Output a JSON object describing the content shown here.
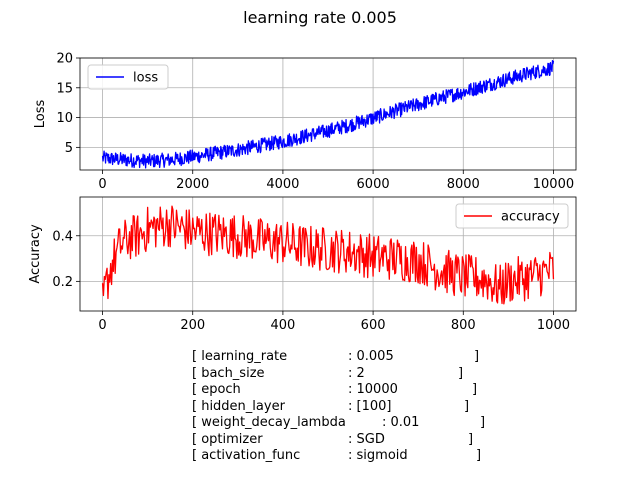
{
  "figure": {
    "suptitle": "learning rate 0.005"
  },
  "chart_data": [
    {
      "type": "line",
      "ylabel": "Loss",
      "xlabel": "",
      "x_range": [
        0,
        10000
      ],
      "xlim": [
        -500,
        10500
      ],
      "ylim": [
        1.2,
        20
      ],
      "xticks": [
        0,
        2000,
        4000,
        6000,
        8000,
        10000
      ],
      "yticks": [
        5,
        10,
        15,
        20
      ],
      "grid": true,
      "legend_placement": "upper left",
      "series": [
        {
          "name": "loss",
          "color": "#0000ff",
          "points": [
            {
              "x": 0,
              "y": 3.2
            },
            {
              "x": 500,
              "y": 2.9
            },
            {
              "x": 1000,
              "y": 2.7
            },
            {
              "x": 1500,
              "y": 2.9
            },
            {
              "x": 2000,
              "y": 3.4
            },
            {
              "x": 2500,
              "y": 4.0
            },
            {
              "x": 3000,
              "y": 4.6
            },
            {
              "x": 3500,
              "y": 5.3
            },
            {
              "x": 4000,
              "y": 6.0
            },
            {
              "x": 4500,
              "y": 6.9
            },
            {
              "x": 5000,
              "y": 7.8
            },
            {
              "x": 5500,
              "y": 8.8
            },
            {
              "x": 6000,
              "y": 9.9
            },
            {
              "x": 6500,
              "y": 11.1
            },
            {
              "x": 7000,
              "y": 12.2
            },
            {
              "x": 7500,
              "y": 13.3
            },
            {
              "x": 8000,
              "y": 14.3
            },
            {
              "x": 8500,
              "y": 15.4
            },
            {
              "x": 9000,
              "y": 16.5
            },
            {
              "x": 9500,
              "y": 17.5
            },
            {
              "x": 10000,
              "y": 18.4
            }
          ],
          "noise_band": 1.2
        }
      ]
    },
    {
      "type": "line",
      "ylabel": "Accuracy",
      "xlabel": "",
      "x_range": [
        0,
        1000
      ],
      "xlim": [
        -50,
        1050
      ],
      "ylim": [
        0.07,
        0.57
      ],
      "xticks": [
        0,
        200,
        400,
        600,
        800,
        1000
      ],
      "yticks": [
        0.2,
        0.4
      ],
      "grid": true,
      "legend_placement": "upper right",
      "series": [
        {
          "name": "accuracy",
          "color": "#ff0000",
          "points": [
            {
              "x": 0,
              "y": 0.1
            },
            {
              "x": 10,
              "y": 0.2
            },
            {
              "x": 20,
              "y": 0.27
            },
            {
              "x": 40,
              "y": 0.36
            },
            {
              "x": 60,
              "y": 0.39
            },
            {
              "x": 80,
              "y": 0.4
            },
            {
              "x": 100,
              "y": 0.43
            },
            {
              "x": 120,
              "y": 0.44
            },
            {
              "x": 150,
              "y": 0.45
            },
            {
              "x": 180,
              "y": 0.43
            },
            {
              "x": 200,
              "y": 0.42
            },
            {
              "x": 250,
              "y": 0.41
            },
            {
              "x": 300,
              "y": 0.4
            },
            {
              "x": 350,
              "y": 0.38
            },
            {
              "x": 400,
              "y": 0.37
            },
            {
              "x": 450,
              "y": 0.35
            },
            {
              "x": 500,
              "y": 0.34
            },
            {
              "x": 550,
              "y": 0.33
            },
            {
              "x": 600,
              "y": 0.31
            },
            {
              "x": 650,
              "y": 0.3
            },
            {
              "x": 700,
              "y": 0.29
            },
            {
              "x": 750,
              "y": 0.25
            },
            {
              "x": 800,
              "y": 0.22
            },
            {
              "x": 850,
              "y": 0.21
            },
            {
              "x": 880,
              "y": 0.17
            },
            {
              "x": 900,
              "y": 0.2
            },
            {
              "x": 950,
              "y": 0.22
            },
            {
              "x": 1000,
              "y": 0.25
            }
          ],
          "noise_band": 0.1
        }
      ]
    }
  ],
  "parameters": [
    {
      "name": "[ learning_rate",
      "value": ": 0.005",
      "close": "]"
    },
    {
      "name": "[ bach_size",
      "value": ": 2",
      "close": "]"
    },
    {
      "name": "[ epoch",
      "value": ": 10000",
      "close": "]"
    },
    {
      "name": "[ hidden_layer",
      "value": ": [100]",
      "close": "]"
    },
    {
      "name": "[ weight_decay_lambda",
      "value": ": 0.01",
      "close": "]"
    },
    {
      "name": "[ optimizer",
      "value": ": SGD",
      "close": "]"
    },
    {
      "name": "[ activation_func",
      "value": ": sigmoid",
      "close": "]"
    }
  ]
}
